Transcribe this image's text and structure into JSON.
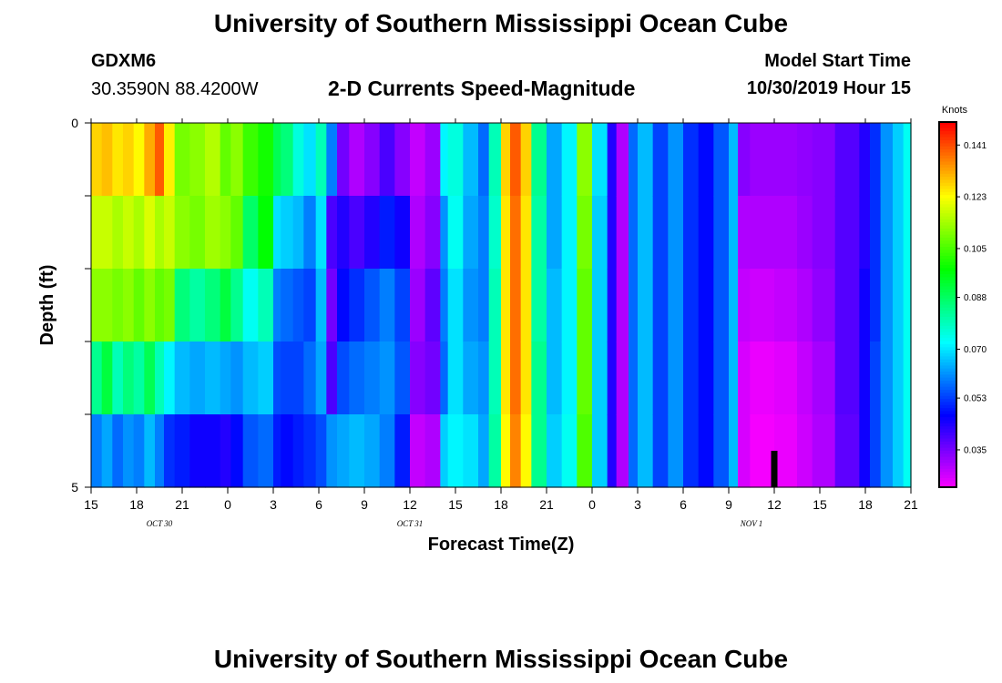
{
  "header": {
    "title": "University of Southern Mississippi Ocean Cube",
    "station_id": "GDXM6",
    "coordinates": "30.3590N 88.4200W",
    "subtitle": "2-D Currents Speed-Magnitude",
    "model_start_label": "Model Start Time",
    "model_start_value": "10/30/2019 Hour 15"
  },
  "footer": {
    "title": "University of Southern Mississippi Ocean Cube"
  },
  "chart_data": {
    "type": "heatmap",
    "title": "2-D Currents Speed-Magnitude",
    "xlabel": "Forecast Time(Z)",
    "ylabel": "Depth (ft)",
    "colorbar_label": "Knots",
    "colorbar_ticks": [
      "0.141",
      "0.123",
      "0.105",
      "0.088",
      "0.070",
      "0.053",
      "0.035"
    ],
    "colorbar_tick_values": [
      0.141,
      0.123,
      0.105,
      0.088,
      0.07,
      0.053,
      0.035
    ],
    "value_range": [
      0.022,
      0.149
    ],
    "x_hours_range": [
      0,
      54
    ],
    "x_tick_labels": [
      "15",
      "18",
      "21",
      "0",
      "3",
      "6",
      "9",
      "12",
      "15",
      "18",
      "21",
      "0",
      "3",
      "6",
      "9",
      "12",
      "15",
      "18",
      "21"
    ],
    "x_date_labels": [
      {
        "text": "OCT  30",
        "hour": 4.5
      },
      {
        "text": "OCT  31",
        "hour": 21
      },
      {
        "text": "NOV  1",
        "hour": 43.5
      }
    ],
    "y_range": [
      0,
      5
    ],
    "y_tick_labels": [
      "0",
      "5"
    ],
    "depth_layers": 5,
    "time_marker_hour": 45,
    "columns": [
      {
        "from": 0,
        "to": 0.7,
        "v": [
          0.128,
          0.118,
          0.112,
          0.084,
          0.06
        ]
      },
      {
        "from": 0.7,
        "to": 1.4,
        "v": [
          0.13,
          0.118,
          0.112,
          0.092,
          0.064
        ]
      },
      {
        "from": 1.4,
        "to": 2.1,
        "v": [
          0.126,
          0.115,
          0.11,
          0.08,
          0.058
        ]
      },
      {
        "from": 2.1,
        "to": 2.8,
        "v": [
          0.128,
          0.118,
          0.112,
          0.086,
          0.062
        ]
      },
      {
        "from": 2.8,
        "to": 3.5,
        "v": [
          0.124,
          0.115,
          0.108,
          0.082,
          0.06
        ]
      },
      {
        "from": 3.5,
        "to": 4.2,
        "v": [
          0.132,
          0.12,
          0.112,
          0.09,
          0.066
        ]
      },
      {
        "from": 4.2,
        "to": 4.8,
        "v": [
          0.14,
          0.115,
          0.108,
          0.08,
          0.06
        ]
      },
      {
        "from": 4.8,
        "to": 5.5,
        "v": [
          0.125,
          0.118,
          0.11,
          0.072,
          0.052
        ]
      },
      {
        "from": 5.5,
        "to": 6.5,
        "v": [
          0.11,
          0.112,
          0.086,
          0.066,
          0.05
        ]
      },
      {
        "from": 6.5,
        "to": 7.5,
        "v": [
          0.112,
          0.11,
          0.082,
          0.064,
          0.046
        ]
      },
      {
        "from": 7.5,
        "to": 8.5,
        "v": [
          0.116,
          0.114,
          0.086,
          0.066,
          0.046
        ]
      },
      {
        "from": 8.5,
        "to": 9.2,
        "v": [
          0.108,
          0.112,
          0.092,
          0.064,
          0.044
        ]
      },
      {
        "from": 9.2,
        "to": 10,
        "v": [
          0.112,
          0.108,
          0.084,
          0.062,
          0.048
        ]
      },
      {
        "from": 10,
        "to": 11,
        "v": [
          0.104,
          0.088,
          0.074,
          0.066,
          0.056
        ]
      },
      {
        "from": 11,
        "to": 12,
        "v": [
          0.1,
          0.098,
          0.08,
          0.068,
          0.058
        ]
      },
      {
        "from": 12,
        "to": 12.5,
        "v": [
          0.09,
          0.07,
          0.06,
          0.055,
          0.05
        ]
      },
      {
        "from": 12.5,
        "to": 13.3,
        "v": [
          0.086,
          0.068,
          0.058,
          0.054,
          0.048
        ]
      },
      {
        "from": 13.3,
        "to": 14,
        "v": [
          0.076,
          0.066,
          0.056,
          0.054,
          0.05
        ]
      },
      {
        "from": 14,
        "to": 14.8,
        "v": [
          0.07,
          0.06,
          0.054,
          0.058,
          0.052
        ]
      },
      {
        "from": 14.8,
        "to": 15.5,
        "v": [
          0.08,
          0.07,
          0.066,
          0.064,
          0.055
        ]
      },
      {
        "from": 15.5,
        "to": 16.2,
        "v": [
          0.06,
          0.04,
          0.036,
          0.04,
          0.062
        ]
      },
      {
        "from": 16.2,
        "to": 17,
        "v": [
          0.036,
          0.044,
          0.048,
          0.055,
          0.064
        ]
      },
      {
        "from": 17,
        "to": 18,
        "v": [
          0.03,
          0.04,
          0.052,
          0.058,
          0.066
        ]
      },
      {
        "from": 18,
        "to": 19,
        "v": [
          0.034,
          0.044,
          0.056,
          0.06,
          0.064
        ]
      },
      {
        "from": 19,
        "to": 20,
        "v": [
          0.04,
          0.05,
          0.06,
          0.062,
          0.06
        ]
      },
      {
        "from": 20,
        "to": 21,
        "v": [
          0.034,
          0.046,
          0.054,
          0.056,
          0.05
        ]
      },
      {
        "from": 21,
        "to": 22,
        "v": [
          0.028,
          0.03,
          0.032,
          0.034,
          0.028
        ]
      },
      {
        "from": 22,
        "to": 23,
        "v": [
          0.032,
          0.034,
          0.038,
          0.036,
          0.03
        ]
      },
      {
        "from": 23,
        "to": 23.5,
        "v": [
          0.072,
          0.062,
          0.06,
          0.058,
          0.068
        ]
      },
      {
        "from": 23.5,
        "to": 24.5,
        "v": [
          0.076,
          0.074,
          0.07,
          0.07,
          0.072
        ]
      },
      {
        "from": 24.5,
        "to": 25.5,
        "v": [
          0.066,
          0.064,
          0.062,
          0.064,
          0.07
        ]
      },
      {
        "from": 25.5,
        "to": 26.2,
        "v": [
          0.058,
          0.06,
          0.06,
          0.062,
          0.064
        ]
      },
      {
        "from": 26.2,
        "to": 27,
        "v": [
          0.08,
          0.078,
          0.08,
          0.08,
          0.082
        ]
      },
      {
        "from": 27,
        "to": 27.6,
        "v": [
          0.128,
          0.126,
          0.126,
          0.126,
          0.124
        ]
      },
      {
        "from": 27.6,
        "to": 28.3,
        "v": [
          0.14,
          0.138,
          0.138,
          0.138,
          0.136
        ]
      },
      {
        "from": 28.3,
        "to": 29,
        "v": [
          0.128,
          0.126,
          0.126,
          0.126,
          0.124
        ]
      },
      {
        "from": 29,
        "to": 30,
        "v": [
          0.084,
          0.082,
          0.082,
          0.084,
          0.084
        ]
      },
      {
        "from": 30,
        "to": 31,
        "v": [
          0.064,
          0.064,
          0.066,
          0.066,
          0.068
        ]
      },
      {
        "from": 31,
        "to": 32,
        "v": [
          0.072,
          0.072,
          0.072,
          0.072,
          0.074
        ]
      },
      {
        "from": 32,
        "to": 33,
        "v": [
          0.112,
          0.11,
          0.108,
          0.108,
          0.106
        ]
      },
      {
        "from": 33,
        "to": 34,
        "v": [
          0.07,
          0.068,
          0.068,
          0.068,
          0.068
        ]
      },
      {
        "from": 34,
        "to": 34.6,
        "v": [
          0.044,
          0.044,
          0.044,
          0.044,
          0.044
        ]
      },
      {
        "from": 34.6,
        "to": 35.4,
        "v": [
          0.03,
          0.03,
          0.03,
          0.03,
          0.03
        ]
      },
      {
        "from": 35.4,
        "to": 36,
        "v": [
          0.058,
          0.058,
          0.058,
          0.058,
          0.058
        ]
      },
      {
        "from": 36,
        "to": 37,
        "v": [
          0.066,
          0.066,
          0.066,
          0.066,
          0.066
        ]
      },
      {
        "from": 37,
        "to": 38,
        "v": [
          0.054,
          0.054,
          0.054,
          0.054,
          0.054
        ]
      },
      {
        "from": 38,
        "to": 39,
        "v": [
          0.062,
          0.062,
          0.062,
          0.062,
          0.062
        ]
      },
      {
        "from": 39,
        "to": 40,
        "v": [
          0.052,
          0.052,
          0.052,
          0.052,
          0.052
        ]
      },
      {
        "from": 40,
        "to": 41,
        "v": [
          0.048,
          0.048,
          0.048,
          0.048,
          0.048
        ]
      },
      {
        "from": 41,
        "to": 42,
        "v": [
          0.056,
          0.056,
          0.056,
          0.056,
          0.056
        ]
      },
      {
        "from": 42,
        "to": 42.6,
        "v": [
          0.066,
          0.066,
          0.066,
          0.066,
          0.066
        ]
      },
      {
        "from": 42.6,
        "to": 43.4,
        "v": [
          0.034,
          0.03,
          0.028,
          0.026,
          0.026
        ]
      },
      {
        "from": 43.4,
        "to": 45,
        "v": [
          0.032,
          0.03,
          0.027,
          0.024,
          0.023
        ]
      },
      {
        "from": 45,
        "to": 46.5,
        "v": [
          0.032,
          0.03,
          0.028,
          0.025,
          0.024
        ]
      },
      {
        "from": 46.5,
        "to": 47.5,
        "v": [
          0.033,
          0.032,
          0.03,
          0.028,
          0.027
        ]
      },
      {
        "from": 47.5,
        "to": 49,
        "v": [
          0.034,
          0.034,
          0.033,
          0.031,
          0.03
        ]
      },
      {
        "from": 49,
        "to": 50.6,
        "v": [
          0.039,
          0.039,
          0.039,
          0.039,
          0.038
        ]
      },
      {
        "from": 50.6,
        "to": 51.3,
        "v": [
          0.044,
          0.044,
          0.046,
          0.046,
          0.046
        ]
      },
      {
        "from": 51.3,
        "to": 52,
        "v": [
          0.052,
          0.052,
          0.052,
          0.054,
          0.054
        ]
      },
      {
        "from": 52,
        "to": 52.8,
        "v": [
          0.062,
          0.062,
          0.062,
          0.062,
          0.062
        ]
      },
      {
        "from": 52.8,
        "to": 53.5,
        "v": [
          0.068,
          0.068,
          0.068,
          0.068,
          0.068
        ]
      },
      {
        "from": 53.5,
        "to": 54,
        "v": [
          0.074,
          0.074,
          0.074,
          0.074,
          0.074
        ]
      }
    ]
  }
}
